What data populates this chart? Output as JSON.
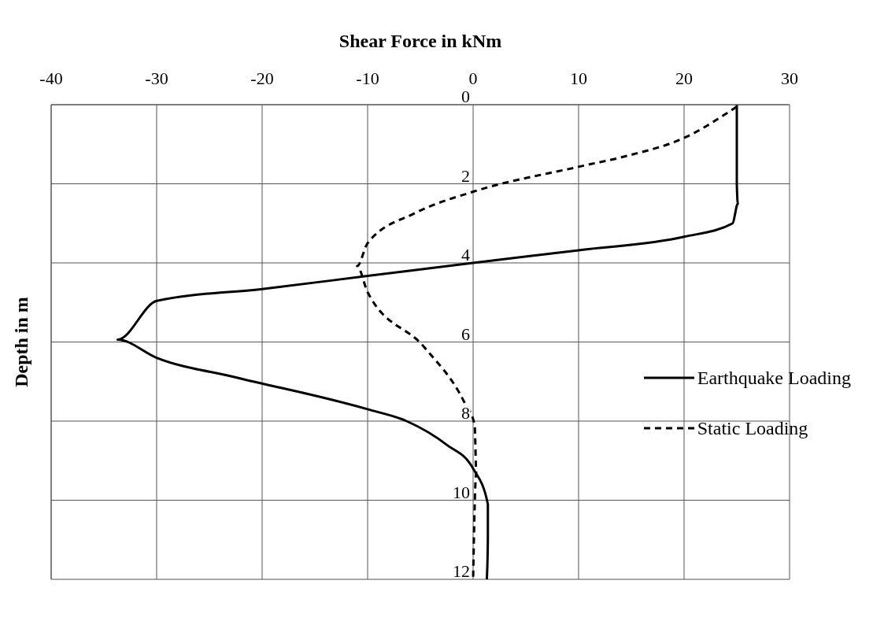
{
  "chart_data": {
    "type": "line",
    "xlabel": "Shear Force in kNm",
    "ylabel": "Depth in m",
    "xlim": [
      -40,
      30
    ],
    "xticks": [
      -40,
      -30,
      -20,
      -10,
      0,
      10,
      20,
      30
    ],
    "ylim": [
      12,
      0
    ],
    "yticks": [
      0,
      2,
      4,
      6,
      8,
      10,
      12
    ],
    "grid": true,
    "legend": "right",
    "marker": "none",
    "series": [
      {
        "name": "Earthquake Loading",
        "color": "#000000",
        "line_style": "solid",
        "x": [
          25,
          25,
          25,
          25.1,
          24.6,
          20,
          10,
          0,
          -10,
          -20,
          -30,
          -33.7,
          -30,
          -22.4,
          -10,
          -6.3,
          -2.5,
          0,
          1.4,
          1.4,
          1.3
        ],
        "values": [
          0,
          1,
          2,
          2.5,
          3.0,
          3.34,
          3.68,
          4.0,
          4.33,
          4.66,
          4.96,
          5.94,
          6.4,
          6.9,
          7.7,
          8.0,
          8.6,
          9.2,
          10.1,
          11,
          12
        ]
      },
      {
        "name": "Static Loading",
        "color": "#000000",
        "line_style": "dashed",
        "x": [
          25,
          20,
          14.5,
          10,
          0,
          -5.5,
          -10,
          -11,
          -10,
          -4.6,
          -0.8,
          0.15,
          0.3,
          0
        ],
        "values": [
          0.05,
          0.84,
          1.3,
          1.57,
          2.2,
          2.74,
          3.5,
          4.08,
          4.74,
          6.14,
          7.54,
          8.1,
          9.3,
          12
        ]
      }
    ]
  }
}
